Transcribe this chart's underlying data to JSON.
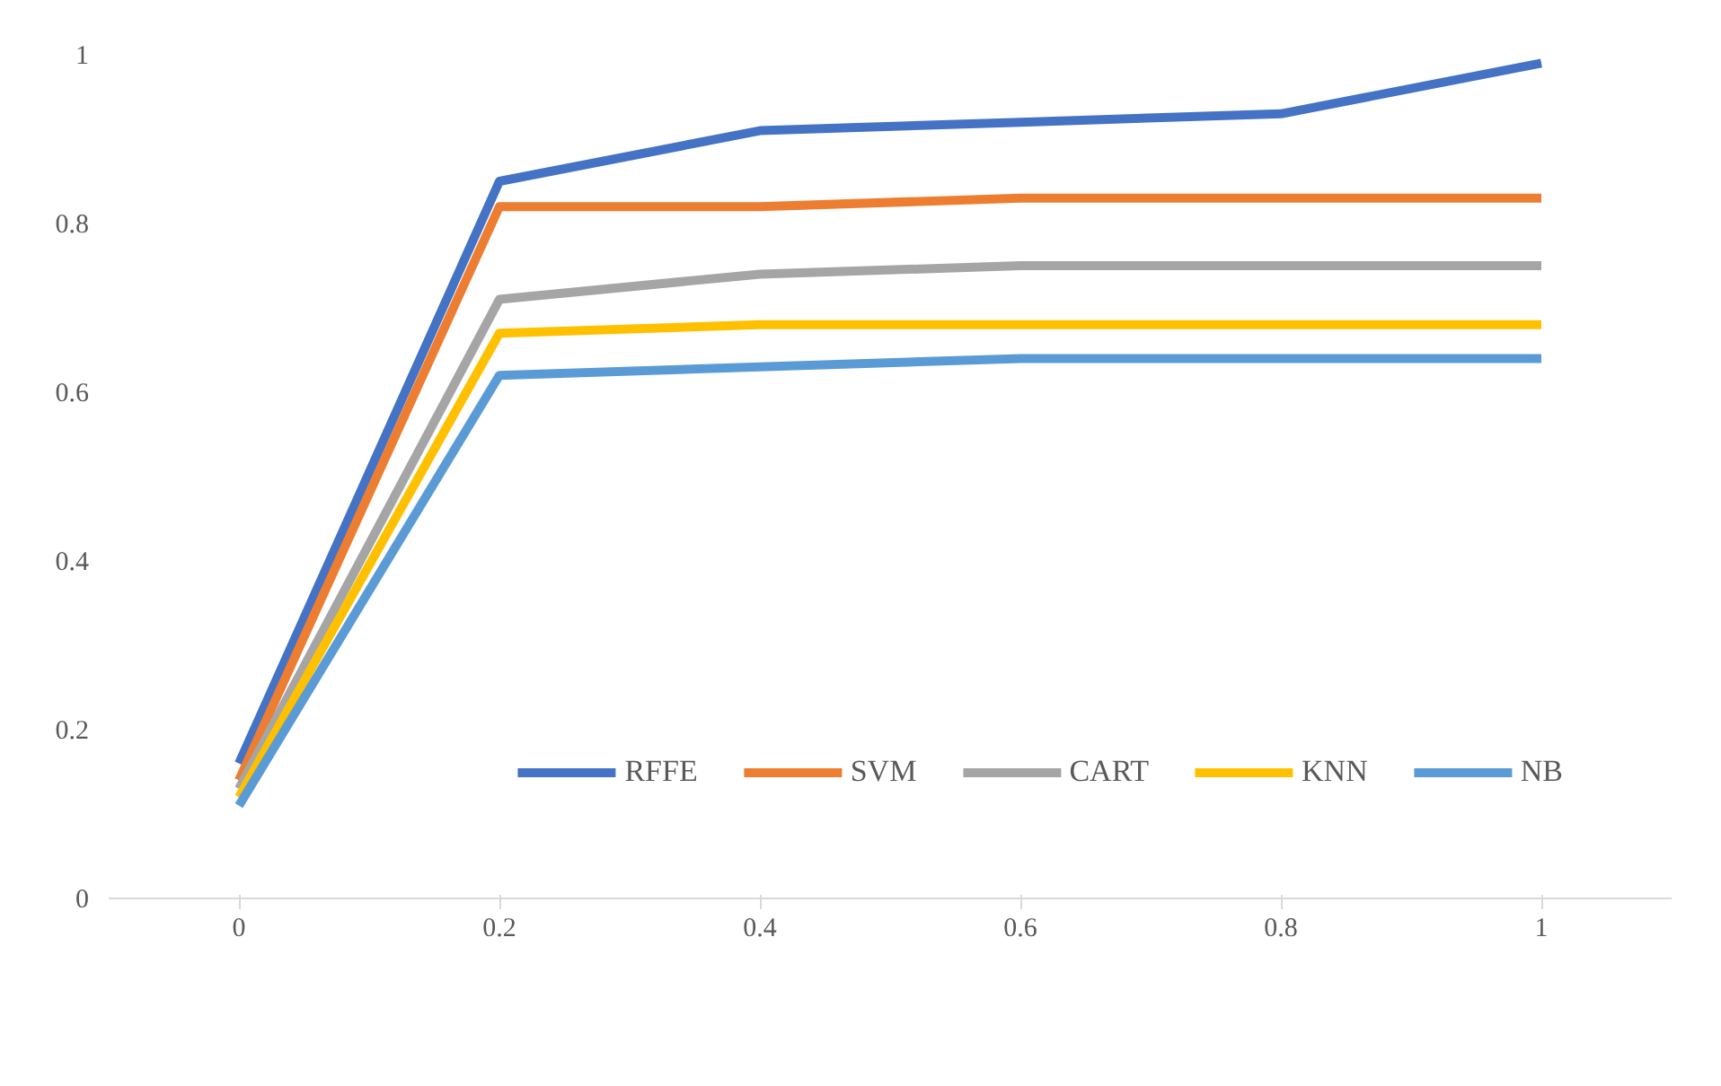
{
  "chart_data": {
    "type": "line",
    "categories": [
      "0",
      "0.2",
      "0.4",
      "0.6",
      "0.8",
      "1"
    ],
    "series": [
      {
        "name": "RFFE",
        "color": "#4472c4",
        "values": [
          0.16,
          0.85,
          0.91,
          0.92,
          0.93,
          0.99
        ]
      },
      {
        "name": "SVM",
        "color": "#ed7d31",
        "values": [
          0.14,
          0.82,
          0.82,
          0.83,
          0.83,
          0.83
        ]
      },
      {
        "name": "CART",
        "color": "#a5a5a5",
        "values": [
          0.13,
          0.71,
          0.74,
          0.75,
          0.75,
          0.75
        ]
      },
      {
        "name": "KNN",
        "color": "#ffc000",
        "values": [
          0.12,
          0.67,
          0.68,
          0.68,
          0.68,
          0.68
        ]
      },
      {
        "name": "NB",
        "color": "#5b9bd5",
        "values": [
          0.11,
          0.62,
          0.63,
          0.64,
          0.64,
          0.64
        ]
      }
    ],
    "ylim": [
      0,
      1
    ],
    "yticks": [
      0,
      0.2,
      0.4,
      0.6,
      0.8,
      1
    ],
    "grid": false,
    "legend": "bottom right",
    "marker": "none",
    "line_style": "solid"
  }
}
